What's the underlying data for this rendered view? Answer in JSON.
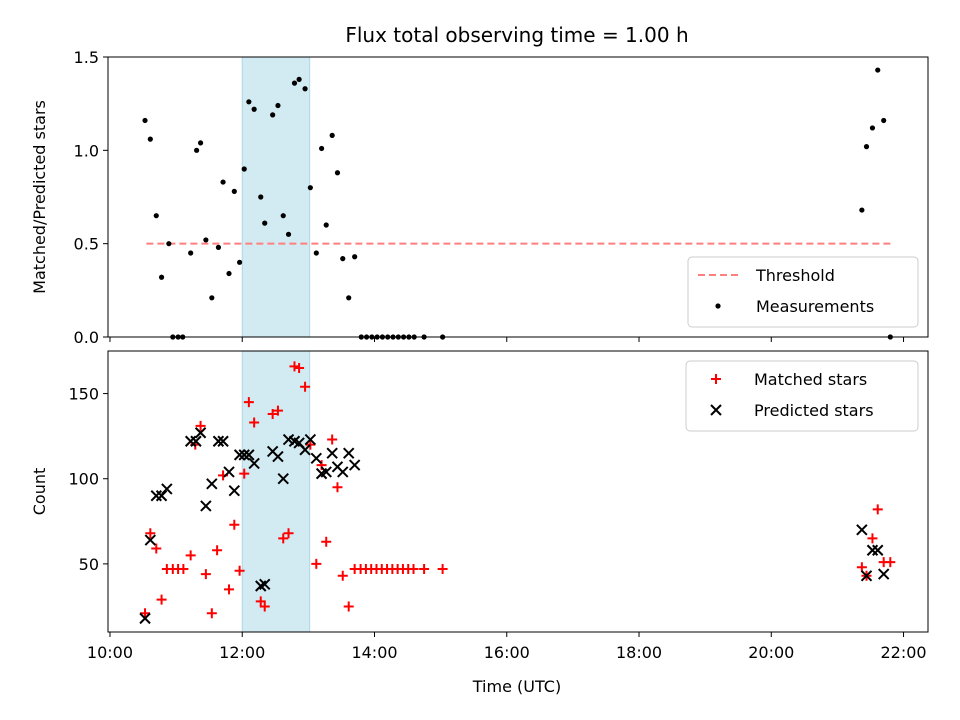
{
  "title": "Flux total observing time = 1.00 h",
  "x_axis": {
    "label": "Time (UTC)",
    "range_hours": [
      9.97,
      22.37
    ],
    "ticks": [
      {
        "value": 10,
        "label": "10:00"
      },
      {
        "value": 12,
        "label": "12:00"
      },
      {
        "value": 14,
        "label": "14:00"
      },
      {
        "value": 16,
        "label": "16:00"
      },
      {
        "value": 18,
        "label": "18:00"
      },
      {
        "value": 20,
        "label": "20:00"
      },
      {
        "value": 22,
        "label": "22:00"
      }
    ]
  },
  "highlight_span_hours": [
    12.0,
    13.02
  ],
  "colors": {
    "span_fill": "#add8e6",
    "threshold": "#ff7f7f",
    "measurements": "#000000",
    "matched": "#ff0000",
    "predicted": "#000000"
  },
  "chart_data": [
    {
      "type": "scatter",
      "title": "Flux total observing time = 1.00 h",
      "ylabel": "Matched/Predicted stars",
      "ylim": [
        0,
        1.5
      ],
      "yticks": [
        {
          "value": 0,
          "label": "0.0"
        },
        {
          "value": 0.5,
          "label": "0.5"
        },
        {
          "value": 1.0,
          "label": "1.0"
        },
        {
          "value": 1.5,
          "label": "1.5"
        }
      ],
      "legend_position": "bottom-right",
      "series": [
        {
          "name": "Threshold",
          "kind": "line",
          "style": "dashed",
          "x": [
            10.55,
            21.8
          ],
          "y": [
            0.5,
            0.5
          ]
        },
        {
          "name": "Measurements",
          "kind": "dots",
          "points": [
            [
              10.53,
              1.16
            ],
            [
              10.61,
              1.06
            ],
            [
              10.7,
              0.65
            ],
            [
              10.78,
              0.32
            ],
            [
              10.89,
              0.5
            ],
            [
              10.95,
              0.0
            ],
            [
              11.03,
              0.0
            ],
            [
              11.1,
              0.0
            ],
            [
              11.22,
              0.45
            ],
            [
              11.31,
              1.0
            ],
            [
              11.37,
              1.04
            ],
            [
              11.45,
              0.52
            ],
            [
              11.54,
              0.21
            ],
            [
              11.64,
              0.48
            ],
            [
              11.71,
              0.83
            ],
            [
              11.8,
              0.34
            ],
            [
              11.88,
              0.78
            ],
            [
              11.96,
              0.4
            ],
            [
              12.03,
              0.9
            ],
            [
              12.1,
              1.26
            ],
            [
              12.18,
              1.22
            ],
            [
              12.28,
              0.75
            ],
            [
              12.34,
              0.61
            ],
            [
              12.46,
              1.19
            ],
            [
              12.54,
              1.24
            ],
            [
              12.62,
              0.65
            ],
            [
              12.7,
              0.55
            ],
            [
              12.79,
              1.36
            ],
            [
              12.86,
              1.38
            ],
            [
              12.95,
              1.33
            ],
            [
              13.03,
              0.8
            ],
            [
              13.12,
              0.45
            ],
            [
              13.2,
              1.01
            ],
            [
              13.27,
              0.6
            ],
            [
              13.36,
              1.08
            ],
            [
              13.44,
              0.88
            ],
            [
              13.52,
              0.42
            ],
            [
              13.61,
              0.21
            ],
            [
              13.7,
              0.43
            ],
            [
              13.8,
              0.0
            ],
            [
              13.88,
              0.0
            ],
            [
              13.96,
              0.0
            ],
            [
              14.04,
              0.0
            ],
            [
              14.12,
              0.0
            ],
            [
              14.2,
              0.0
            ],
            [
              14.28,
              0.0
            ],
            [
              14.36,
              0.0
            ],
            [
              14.44,
              0.0
            ],
            [
              14.52,
              0.0
            ],
            [
              14.6,
              0.0
            ],
            [
              14.75,
              0.0
            ],
            [
              15.03,
              0.0
            ],
            [
              21.37,
              0.68
            ],
            [
              21.44,
              1.02
            ],
            [
              21.53,
              1.12
            ],
            [
              21.61,
              1.43
            ],
            [
              21.7,
              1.16
            ],
            [
              21.8,
              0.0
            ]
          ]
        }
      ]
    },
    {
      "type": "scatter",
      "xlabel": "Time (UTC)",
      "ylabel": "Count",
      "ylim": [
        10,
        175
      ],
      "yticks": [
        {
          "value": 50,
          "label": "50"
        },
        {
          "value": 100,
          "label": "100"
        },
        {
          "value": 150,
          "label": "150"
        }
      ],
      "legend_position": "top-right",
      "series": [
        {
          "name": "Matched stars",
          "marker": "plus",
          "points": [
            [
              10.53,
              21
            ],
            [
              10.61,
              68
            ],
            [
              10.7,
              59
            ],
            [
              10.78,
              29
            ],
            [
              10.86,
              47
            ],
            [
              10.95,
              47
            ],
            [
              11.03,
              47
            ],
            [
              11.11,
              47
            ],
            [
              11.22,
              55
            ],
            [
              11.29,
              120
            ],
            [
              11.37,
              131
            ],
            [
              11.45,
              44
            ],
            [
              11.54,
              21
            ],
            [
              11.62,
              58
            ],
            [
              11.71,
              102
            ],
            [
              11.8,
              35
            ],
            [
              11.88,
              73
            ],
            [
              11.96,
              46
            ],
            [
              12.03,
              103
            ],
            [
              12.1,
              145
            ],
            [
              12.18,
              133
            ],
            [
              12.28,
              28
            ],
            [
              12.34,
              25
            ],
            [
              12.46,
              138
            ],
            [
              12.54,
              140
            ],
            [
              12.62,
              65
            ],
            [
              12.7,
              68
            ],
            [
              12.79,
              166
            ],
            [
              12.86,
              165
            ],
            [
              12.95,
              154
            ],
            [
              13.03,
              120
            ],
            [
              13.12,
              50
            ],
            [
              13.2,
              108
            ],
            [
              13.27,
              63
            ],
            [
              13.36,
              123
            ],
            [
              13.44,
              95
            ],
            [
              13.52,
              43
            ],
            [
              13.61,
              25
            ],
            [
              13.7,
              47
            ],
            [
              13.79,
              47
            ],
            [
              13.87,
              47
            ],
            [
              13.95,
              47
            ],
            [
              14.03,
              47
            ],
            [
              14.11,
              47
            ],
            [
              14.19,
              47
            ],
            [
              14.27,
              47
            ],
            [
              14.35,
              47
            ],
            [
              14.43,
              47
            ],
            [
              14.51,
              47
            ],
            [
              14.59,
              47
            ],
            [
              14.75,
              47
            ],
            [
              15.03,
              47
            ],
            [
              21.37,
              48
            ],
            [
              21.44,
              43
            ],
            [
              21.53,
              65
            ],
            [
              21.61,
              82
            ],
            [
              21.7,
              51
            ],
            [
              21.8,
              51
            ]
          ]
        },
        {
          "name": "Predicted stars",
          "marker": "x",
          "points": [
            [
              10.53,
              18
            ],
            [
              10.61,
              64
            ],
            [
              10.7,
              90
            ],
            [
              10.78,
              90
            ],
            [
              10.86,
              94
            ],
            [
              11.22,
              122
            ],
            [
              11.3,
              122
            ],
            [
              11.37,
              127
            ],
            [
              11.45,
              84
            ],
            [
              11.54,
              97
            ],
            [
              11.64,
              122
            ],
            [
              11.71,
              122
            ],
            [
              11.8,
              104
            ],
            [
              11.88,
              93
            ],
            [
              11.96,
              114
            ],
            [
              12.03,
              114
            ],
            [
              12.1,
              114
            ],
            [
              12.18,
              109
            ],
            [
              12.28,
              37
            ],
            [
              12.34,
              38
            ],
            [
              12.46,
              116
            ],
            [
              12.54,
              113
            ],
            [
              12.62,
              100
            ],
            [
              12.7,
              123
            ],
            [
              12.79,
              122
            ],
            [
              12.86,
              121
            ],
            [
              12.95,
              117
            ],
            [
              13.03,
              123
            ],
            [
              13.12,
              112
            ],
            [
              13.2,
              103
            ],
            [
              13.27,
              104
            ],
            [
              13.36,
              115
            ],
            [
              13.44,
              107
            ],
            [
              13.52,
              104
            ],
            [
              13.61,
              115
            ],
            [
              13.7,
              108
            ],
            [
              21.37,
              70
            ],
            [
              21.44,
              43
            ],
            [
              21.53,
              58
            ],
            [
              21.61,
              58
            ],
            [
              21.7,
              44
            ]
          ]
        }
      ]
    }
  ]
}
